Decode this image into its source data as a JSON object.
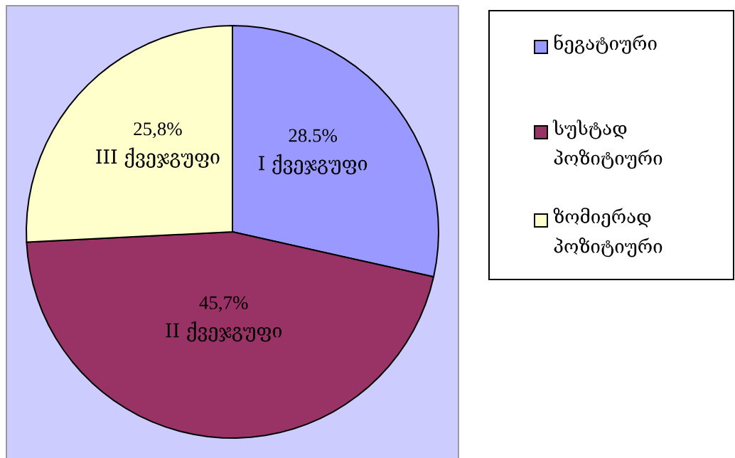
{
  "chart_data": {
    "type": "pie",
    "categories": [
      "ნეგატიური",
      "სუსტად პოზიტიური",
      "ზომიერად პოზიტიური"
    ],
    "values": [
      28.5,
      45.7,
      25.8
    ],
    "colors": [
      "#9999ff",
      "#993366",
      "#ffffcc"
    ],
    "value_labels": [
      "28.5%",
      "45,7%",
      "25,8%"
    ],
    "annotations": [
      "I  ქვეჯგუფი",
      "II  ქვეჯგუფი",
      "III  ქვეჯგუფი"
    ],
    "legend": "right"
  }
}
